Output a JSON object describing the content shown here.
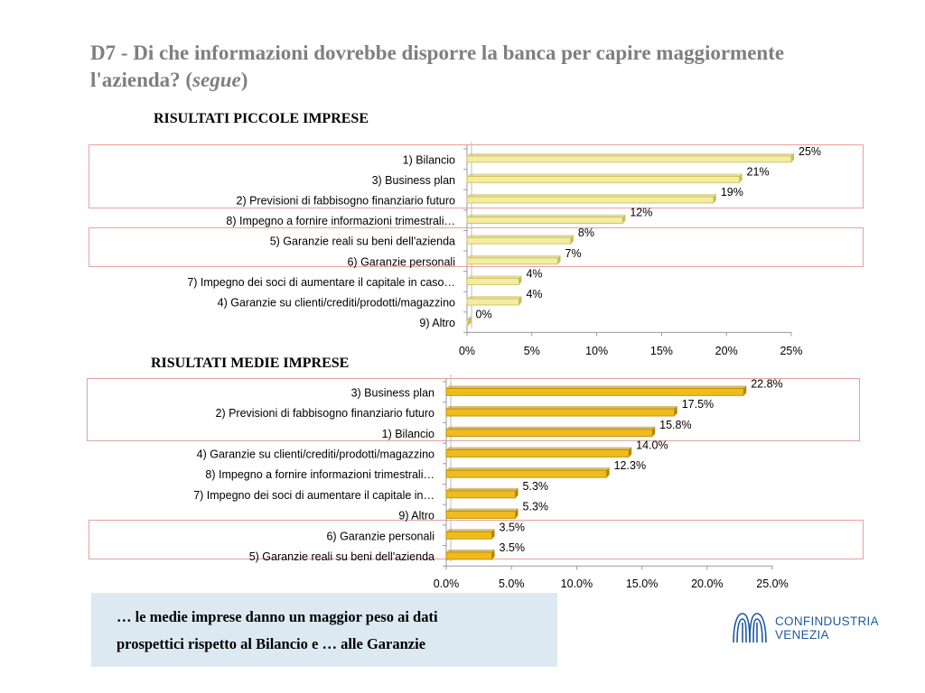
{
  "slide": {
    "title_main": "D7 - Di che informazioni dovrebbe disporre la banca per capire maggiormente l'azienda? (",
    "title_italic": "segue",
    "title_close": ")",
    "callout_line1": "… le medie imprese danno un maggior peso ai dati",
    "callout_line2": "prospettici  rispetto al Bilancio e … alle Garanzie",
    "logo_line1": "CONFINDUSTRIA",
    "logo_line2": "VENEZIA"
  },
  "colors": {
    "bar_small": "#f3eca1",
    "bar_small_edge": "#c8bd55",
    "bar_medium": "#f0bb1c",
    "bar_medium_edge": "#b58600",
    "title_grey": "#7f7f7f",
    "highlight_border": "#e8a0a0",
    "callout_bg": "#dce9f3",
    "logo_blue": "#1f5aa3"
  },
  "chart_data": [
    {
      "type": "bar",
      "orientation": "horizontal",
      "title": "RISULTATI PICCOLE IMPRESE",
      "categories": [
        "1) Bilancio",
        "3) Business plan",
        "2) Previsioni di fabbisogno finanziario futuro",
        "8) Impegno a fornire informazioni trimestrali…",
        "5) Garanzie reali su beni dell'azienda",
        "6) Garanzie personali",
        "7) Impegno dei soci di aumentare il capitale in caso…",
        "4) Garanzie su clienti/crediti/prodotti/magazzino",
        "9) Altro"
      ],
      "values": [
        25,
        21,
        19,
        12,
        8,
        7,
        4,
        4,
        0
      ],
      "value_labels": [
        "25%",
        "21%",
        "19%",
        "12%",
        "8%",
        "7%",
        "4%",
        "4%",
        "0%"
      ],
      "xlim": [
        0,
        25
      ],
      "x_ticks": [
        "0%",
        "5%",
        "10%",
        "15%",
        "20%",
        "25%"
      ],
      "grid": false,
      "highlight_groups": [
        [
          0,
          2
        ],
        [
          4,
          5
        ]
      ]
    },
    {
      "type": "bar",
      "orientation": "horizontal",
      "title": "RISULTATI MEDIE IMPRESE",
      "categories": [
        "3) Business plan",
        "2) Previsioni di fabbisogno finanziario futuro",
        "1) Bilancio",
        "4) Garanzie su clienti/crediti/prodotti/magazzino",
        "8) Impegno a fornire informazioni trimestrali…",
        "7) Impegno dei soci di aumentare il capitale in…",
        "9) Altro",
        "6) Garanzie personali",
        "5) Garanzie reali su beni dell'azienda"
      ],
      "values": [
        22.8,
        17.5,
        15.8,
        14.0,
        12.3,
        5.3,
        5.3,
        3.5,
        3.5
      ],
      "value_labels": [
        "22.8%",
        "17.5%",
        "15.8%",
        "14.0%",
        "12.3%",
        "5.3%",
        "5.3%",
        "3.5%",
        "3.5%"
      ],
      "xlim": [
        0,
        25
      ],
      "x_ticks": [
        "0.0%",
        "5.0%",
        "10.0%",
        "15.0%",
        "20.0%",
        "25.0%"
      ],
      "grid": false,
      "highlight_groups": [
        [
          0,
          2
        ],
        [
          7,
          8
        ]
      ]
    }
  ]
}
